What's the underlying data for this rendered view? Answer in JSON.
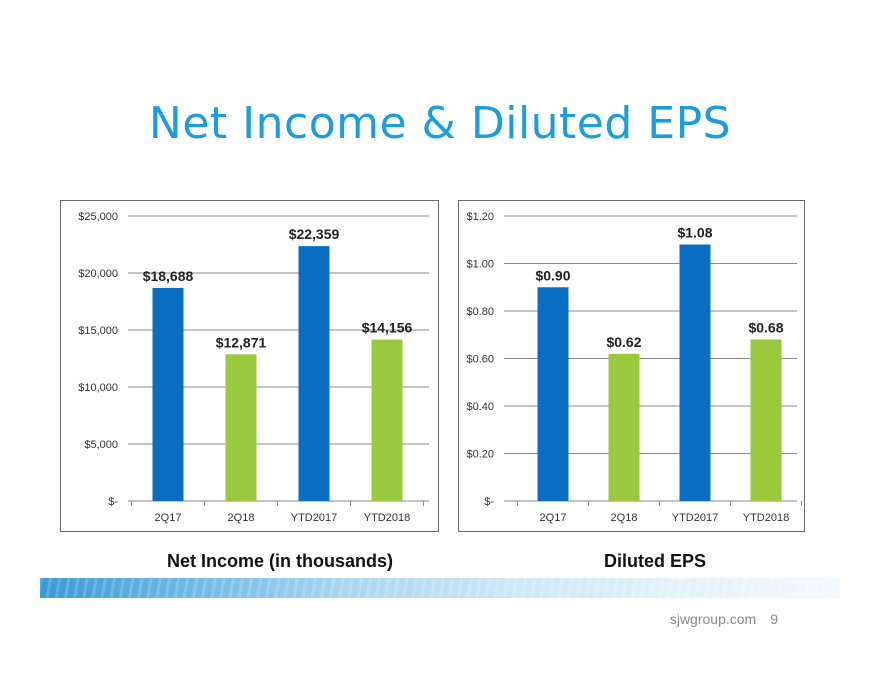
{
  "title": "Net Income & Diluted EPS",
  "colors": {
    "title": "#1a9ee0",
    "bar_primary": "#0a6fc2",
    "bar_secondary": "#99c93c",
    "grid": "#8a8a8a"
  },
  "footer": {
    "site": "sjwgroup.com",
    "page": "9"
  },
  "chart_data": [
    {
      "type": "bar",
      "title": "Net Income (in thousands)",
      "categories": [
        "2Q17",
        "2Q18",
        "YTD2017",
        "YTD2018"
      ],
      "values": [
        18688,
        12871,
        22359,
        14156
      ],
      "data_labels": [
        "$18,688",
        "$12,871",
        "$22,359",
        "$14,156"
      ],
      "bar_colors": [
        "#0a6fc2",
        "#99c93c",
        "#0a6fc2",
        "#99c93c"
      ],
      "ylim": [
        0,
        25000
      ],
      "yticks": [
        0,
        5000,
        10000,
        15000,
        20000,
        25000
      ],
      "ytick_labels": [
        "$-",
        "$5,000",
        "$10,000",
        "$15,000",
        "$20,000",
        "$25,000"
      ],
      "grid": true
    },
    {
      "type": "bar",
      "title": "Diluted EPS",
      "categories": [
        "2Q17",
        "2Q18",
        "YTD2017",
        "YTD2018"
      ],
      "values": [
        0.9,
        0.62,
        1.08,
        0.68
      ],
      "data_labels": [
        "$0.90",
        "$0.62",
        "$1.08",
        "$0.68"
      ],
      "bar_colors": [
        "#0a6fc2",
        "#99c93c",
        "#0a6fc2",
        "#99c93c"
      ],
      "ylim": [
        0,
        1.2
      ],
      "yticks": [
        0,
        0.2,
        0.4,
        0.6,
        0.8,
        1.0,
        1.2
      ],
      "ytick_labels": [
        "$-",
        "$0.20",
        "$0.40",
        "$0.60",
        "$0.80",
        "$1.00",
        "$1.20"
      ],
      "grid": true
    }
  ]
}
